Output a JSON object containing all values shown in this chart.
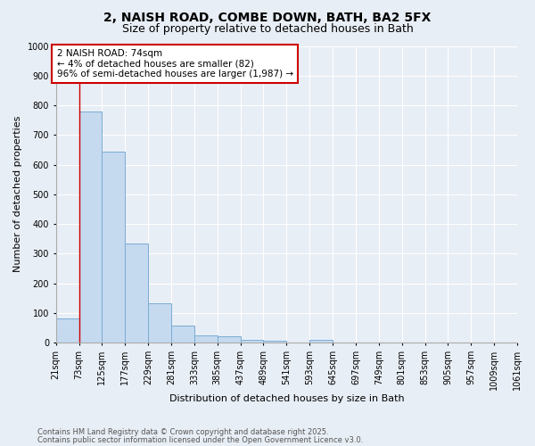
{
  "title1": "2, NAISH ROAD, COMBE DOWN, BATH, BA2 5FX",
  "title2": "Size of property relative to detached houses in Bath",
  "xlabel": "Distribution of detached houses by size in Bath",
  "ylabel": "Number of detached properties",
  "bar_left_edges": [
    21,
    73,
    125,
    177,
    229,
    281,
    333,
    385,
    437,
    489,
    541,
    593,
    645,
    697,
    749,
    801,
    853,
    905,
    957,
    1009
  ],
  "bar_heights": [
    82,
    780,
    645,
    333,
    133,
    57,
    25,
    20,
    10,
    7,
    0,
    10,
    0,
    0,
    0,
    0,
    0,
    0,
    0,
    0
  ],
  "bin_width": 52,
  "bar_color": "#c5d9ef",
  "bar_edge_color": "#7aadd4",
  "vline_x": 74,
  "vline_color": "#cc0000",
  "annotation_text": "2 NAISH ROAD: 74sqm\n← 4% of detached houses are smaller (82)\n96% of semi-detached houses are larger (1,987) →",
  "annotation_box_color": "#cc0000",
  "tick_labels": [
    "21sqm",
    "73sqm",
    "125sqm",
    "177sqm",
    "229sqm",
    "281sqm",
    "333sqm",
    "385sqm",
    "437sqm",
    "489sqm",
    "541sqm",
    "593sqm",
    "645sqm",
    "697sqm",
    "749sqm",
    "801sqm",
    "853sqm",
    "905sqm",
    "957sqm",
    "1009sqm",
    "1061sqm"
  ],
  "ylim": [
    0,
    1000
  ],
  "yticks": [
    0,
    100,
    200,
    300,
    400,
    500,
    600,
    700,
    800,
    900,
    1000
  ],
  "footer1": "Contains HM Land Registry data © Crown copyright and database right 2025.",
  "footer2": "Contains public sector information licensed under the Open Government Licence v3.0.",
  "bg_color": "#e8eef5",
  "plot_bg_color": "#e8eef5",
  "grid_color": "#ffffff",
  "title1_fontsize": 10,
  "title2_fontsize": 9,
  "axis_label_fontsize": 8,
  "tick_fontsize": 7,
  "annotation_fontsize": 7.5,
  "footer_fontsize": 6
}
